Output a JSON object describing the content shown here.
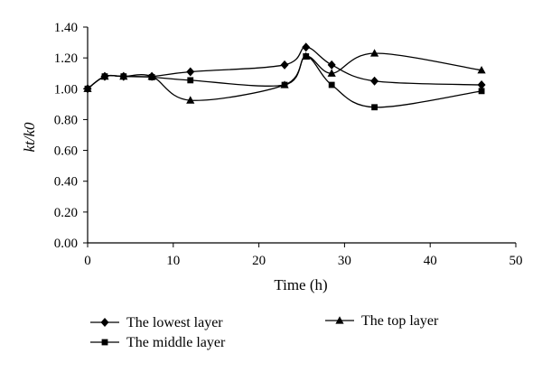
{
  "chart_data": {
    "type": "line",
    "xlabel": "Time (h)",
    "ylabel": "kt/k0",
    "xlim": [
      0,
      50
    ],
    "ylim": [
      0,
      1.4
    ],
    "xticks": [
      0,
      10,
      20,
      30,
      40,
      50
    ],
    "yticks": [
      0.0,
      0.2,
      0.4,
      0.6,
      0.8,
      1.0,
      1.2,
      1.4
    ],
    "xtick_labels": [
      "0",
      "10",
      "20",
      "30",
      "40",
      "50"
    ],
    "ytick_labels": [
      "0.00",
      "0.20",
      "0.40",
      "0.60",
      "0.80",
      "1.00",
      "1.20",
      "1.40"
    ],
    "grid": false,
    "legend_position": "bottom",
    "series": [
      {
        "name": "The lowest layer",
        "marker": "diamond",
        "x": [
          0,
          2,
          4.2,
          7.5,
          12,
          23,
          25.5,
          28.5,
          33.5,
          46
        ],
        "y": [
          1.0,
          1.08,
          1.08,
          1.08,
          1.11,
          1.155,
          1.27,
          1.155,
          1.05,
          1.025
        ]
      },
      {
        "name": "The middle layer",
        "marker": "square",
        "x": [
          0,
          2,
          4.2,
          7.5,
          12,
          23,
          25.5,
          28.5,
          33.5,
          46
        ],
        "y": [
          1.0,
          1.08,
          1.08,
          1.075,
          1.055,
          1.025,
          1.21,
          1.025,
          0.88,
          0.985
        ]
      },
      {
        "name": "The top layer",
        "marker": "triangle",
        "x": [
          0,
          2,
          4.2,
          7.5,
          12,
          23,
          25.5,
          28.5,
          33.5,
          46
        ],
        "y": [
          1.0,
          1.08,
          1.08,
          1.08,
          0.925,
          1.025,
          1.21,
          1.1,
          1.23,
          1.12
        ]
      }
    ]
  }
}
